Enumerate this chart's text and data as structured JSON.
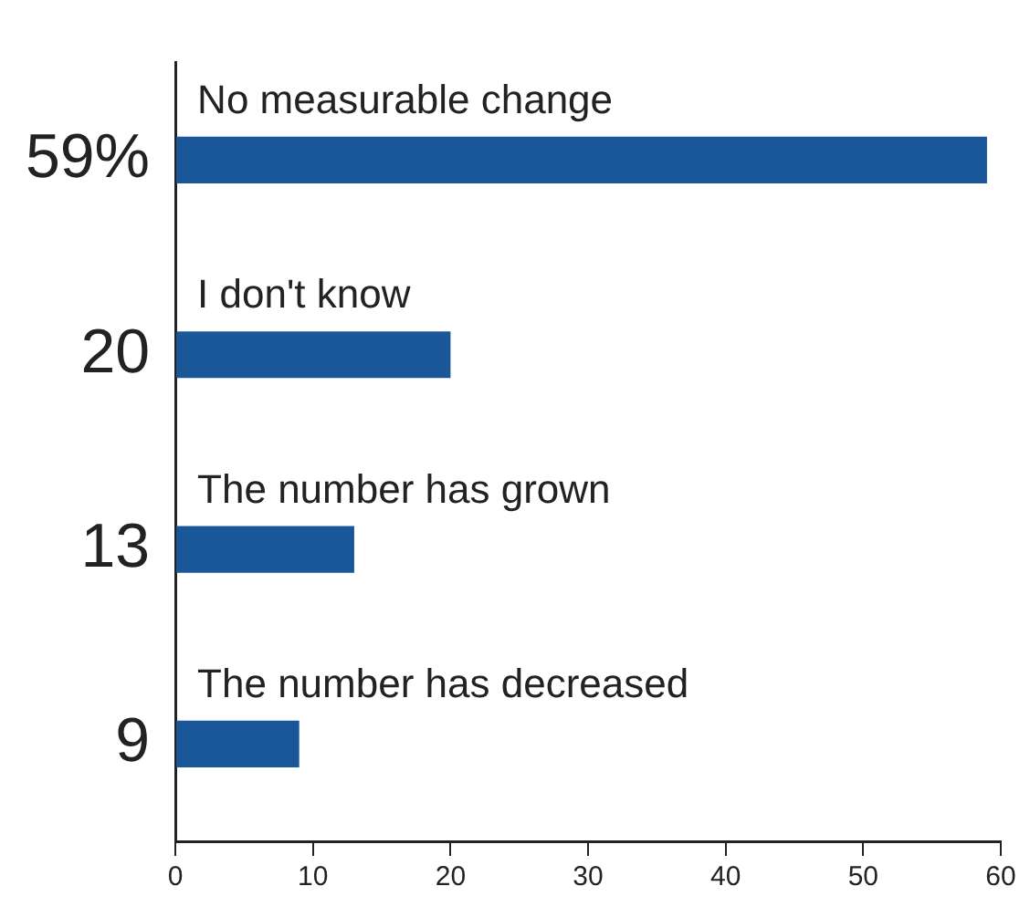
{
  "chart_data": {
    "type": "bar",
    "orientation": "horizontal",
    "categories": [
      "No measurable change",
      "I don't know",
      "The number has grown",
      "The number has decreased"
    ],
    "values": [
      59,
      20,
      13,
      9
    ],
    "color": "#1a5799",
    "value_labels": [
      "59%",
      "20",
      "13",
      "9"
    ],
    "xlim": [
      0,
      60
    ],
    "xticks": [
      0,
      10,
      20,
      30,
      40,
      50,
      60
    ],
    "grid": false,
    "legend": false
  }
}
